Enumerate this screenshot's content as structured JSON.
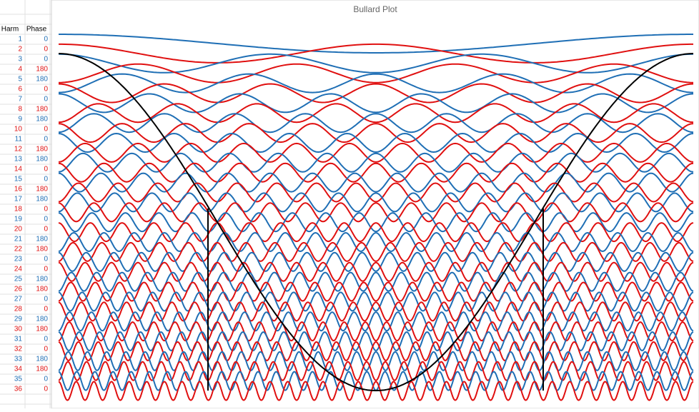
{
  "chart": {
    "title": "Bullard Plot"
  },
  "table": {
    "headers": [
      "Harm",
      "Phase"
    ],
    "rows": [
      [
        1,
        0
      ],
      [
        2,
        0
      ],
      [
        3,
        0
      ],
      [
        4,
        180
      ],
      [
        5,
        180
      ],
      [
        6,
        0
      ],
      [
        7,
        0
      ],
      [
        8,
        180
      ],
      [
        9,
        180
      ],
      [
        10,
        0
      ],
      [
        11,
        0
      ],
      [
        12,
        180
      ],
      [
        13,
        180
      ],
      [
        14,
        0
      ],
      [
        15,
        0
      ],
      [
        16,
        180
      ],
      [
        17,
        180
      ],
      [
        18,
        0
      ],
      [
        19,
        0
      ],
      [
        20,
        0
      ],
      [
        21,
        180
      ],
      [
        22,
        180
      ],
      [
        23,
        0
      ],
      [
        24,
        0
      ],
      [
        25,
        180
      ],
      [
        26,
        180
      ],
      [
        27,
        0
      ],
      [
        28,
        0
      ],
      [
        29,
        180
      ],
      [
        30,
        180
      ],
      [
        31,
        0
      ],
      [
        32,
        0
      ],
      [
        33,
        180
      ],
      [
        34,
        180
      ],
      [
        35,
        0
      ],
      [
        36,
        0
      ]
    ],
    "colors": {
      "odd": "#1f6fb5",
      "even": "#e01010"
    }
  }
}
